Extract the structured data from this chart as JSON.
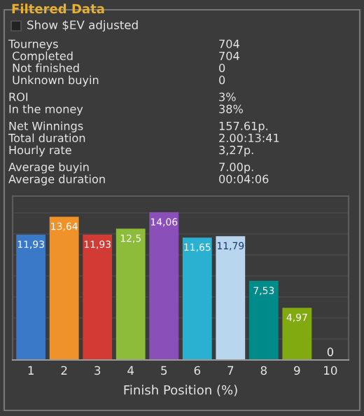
{
  "chart_data": {
    "type": "bar",
    "title": "Filtered Data",
    "xlabel": "Finish Position (%)",
    "categories": [
      "1",
      "2",
      "3",
      "4",
      "5",
      "6",
      "7",
      "8",
      "9",
      "10"
    ],
    "values": [
      11.93,
      13.64,
      11.93,
      12.5,
      14.06,
      11.65,
      11.79,
      7.53,
      4.97,
      0
    ],
    "colors": [
      "#3a78c8",
      "#f0922a",
      "#d23a34",
      "#8dbb3a",
      "#8a4fb8",
      "#2ab0d0",
      "#b8d6ee",
      "#008b8b",
      "#80aa10",
      "#80aa10"
    ],
    "value_labels": [
      "11,93",
      "13,64",
      "11,93",
      "12,5",
      "14,06",
      "11,65",
      "11,79",
      "7,53",
      "4,97",
      "0"
    ],
    "ylim": [
      0,
      15.6
    ],
    "yticks": [
      {
        "value": 0,
        "label": null
      },
      {
        "value": 2,
        "label": null
      },
      {
        "value": 4,
        "label": null
      },
      {
        "value": 6,
        "label": null
      },
      {
        "value": 8,
        "label": null
      },
      {
        "value": 10,
        "label": null
      },
      {
        "value": 12,
        "label": null
      },
      {
        "value": 14,
        "label": null
      }
    ],
    "tick_labels": "x",
    "grid": "y",
    "annotations": [
      "Show $EV adjusted",
      "Tourneys",
      "704",
      " Completed",
      "704",
      " Not finished",
      "0",
      " Unknown buyin",
      "0",
      "ROI",
      "3%",
      "In the money",
      "38%",
      "Net Winnings",
      "157.61p.",
      "Total duration",
      "2.00:13:41",
      "Hourly rate",
      "3,27p.",
      "Average buyin",
      "7.00p.",
      "Average duration",
      "00:04:06"
    ]
  }
}
